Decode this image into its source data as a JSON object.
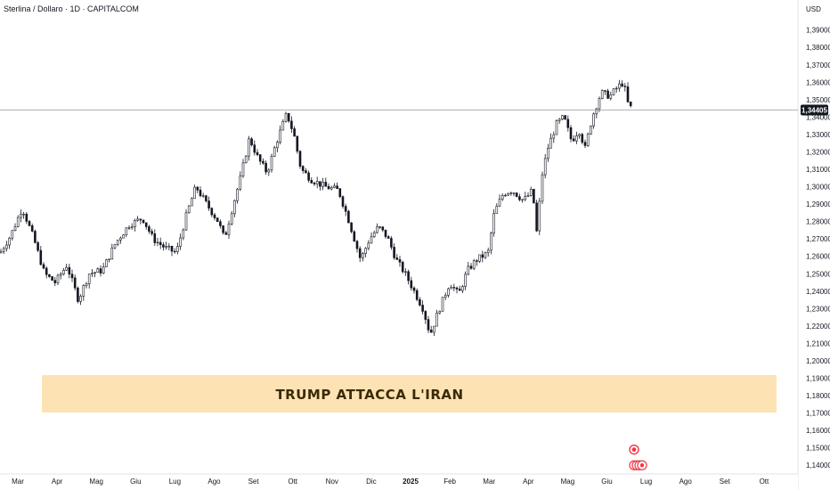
{
  "header": {
    "title": "Sterlina / Dollaro · 1D · CAPITALCOM",
    "currency": "USD"
  },
  "banner": {
    "text": "TRUMP ATTACCA L'IRAN",
    "fill": "#fde3b4"
  },
  "colors": {
    "candle": "#131722",
    "price_line": "#9598a1",
    "price_tag_bg": "#131722",
    "marker": "#f23645"
  },
  "chart_data": {
    "type": "candlestick",
    "y_tick_labels": [
      "1,39000",
      "1,38000",
      "1,37000",
      "1,36000",
      "1,35000",
      "1,34000",
      "1,33000",
      "1,32000",
      "1,31000",
      "1,30000",
      "1,29000",
      "1,28000",
      "1,27000",
      "1,26000",
      "1,25000",
      "1,24000",
      "1,23000",
      "1,22000",
      "1,21000",
      "1,20000",
      "1,19000",
      "1,18000",
      "1,17000",
      "1,16000",
      "1,15000",
      "1,14000"
    ],
    "y_ticks": [
      1.39,
      1.38,
      1.37,
      1.36,
      1.35,
      1.34,
      1.33,
      1.32,
      1.31,
      1.3,
      1.29,
      1.28,
      1.27,
      1.26,
      1.25,
      1.24,
      1.23,
      1.22,
      1.21,
      1.2,
      1.19,
      1.18,
      1.17,
      1.16,
      1.15,
      1.14
    ],
    "ylim": [
      1.135,
      1.397
    ],
    "x_tick_labels": [
      "Mar",
      "Apr",
      "Mag",
      "Giu",
      "Lug",
      "Ago",
      "Set",
      "Ott",
      "Nov",
      "Dic",
      "2025",
      "Feb",
      "Mar",
      "Apr",
      "Mag",
      "Giu",
      "Lug",
      "Ago",
      "Set",
      "Ott"
    ],
    "current_price": 1.34405,
    "current_price_label": "1,34405",
    "anchors": [
      [
        0,
        1.262
      ],
      [
        12,
        1.272
      ],
      [
        25,
        1.288
      ],
      [
        38,
        1.27
      ],
      [
        50,
        1.25
      ],
      [
        62,
        1.245
      ],
      [
        75,
        1.255
      ],
      [
        88,
        1.235
      ],
      [
        100,
        1.25
      ],
      [
        115,
        1.252
      ],
      [
        130,
        1.268
      ],
      [
        145,
        1.278
      ],
      [
        160,
        1.282
      ],
      [
        172,
        1.27
      ],
      [
        185,
        1.265
      ],
      [
        198,
        1.262
      ],
      [
        210,
        1.285
      ],
      [
        220,
        1.3
      ],
      [
        232,
        1.29
      ],
      [
        245,
        1.28
      ],
      [
        252,
        1.27
      ],
      [
        262,
        1.29
      ],
      [
        270,
        1.305
      ],
      [
        280,
        1.328
      ],
      [
        290,
        1.316
      ],
      [
        300,
        1.308
      ],
      [
        310,
        1.325
      ],
      [
        322,
        1.342
      ],
      [
        330,
        1.33
      ],
      [
        338,
        1.31
      ],
      [
        350,
        1.304
      ],
      [
        365,
        1.3
      ],
      [
        380,
        1.298
      ],
      [
        392,
        1.28
      ],
      [
        405,
        1.258
      ],
      [
        415,
        1.27
      ],
      [
        425,
        1.277
      ],
      [
        435,
        1.271
      ],
      [
        445,
        1.258
      ],
      [
        455,
        1.25
      ],
      [
        465,
        1.24
      ],
      [
        475,
        1.23
      ],
      [
        483,
        1.215
      ],
      [
        492,
        1.228
      ],
      [
        505,
        1.245
      ],
      [
        515,
        1.238
      ],
      [
        525,
        1.252
      ],
      [
        535,
        1.258
      ],
      [
        548,
        1.262
      ],
      [
        555,
        1.285
      ],
      [
        565,
        1.296
      ],
      [
        575,
        1.298
      ],
      [
        588,
        1.292
      ],
      [
        598,
        1.298
      ],
      [
        603,
        1.272
      ],
      [
        608,
        1.305
      ],
      [
        615,
        1.322
      ],
      [
        625,
        1.336
      ],
      [
        633,
        1.34
      ],
      [
        642,
        1.326
      ],
      [
        650,
        1.333
      ],
      [
        657,
        1.322
      ],
      [
        665,
        1.34
      ],
      [
        675,
        1.354
      ],
      [
        685,
        1.352
      ],
      [
        693,
        1.357
      ],
      [
        700,
        1.36
      ],
      [
        705,
        1.348
      ],
      [
        710,
        1.344
      ]
    ],
    "events": [
      {
        "type": "earnings-marker",
        "date_index": 712,
        "value": 1.149
      },
      {
        "type": "stacked-markers",
        "date_index": 712,
        "value": 1.14
      }
    ]
  }
}
